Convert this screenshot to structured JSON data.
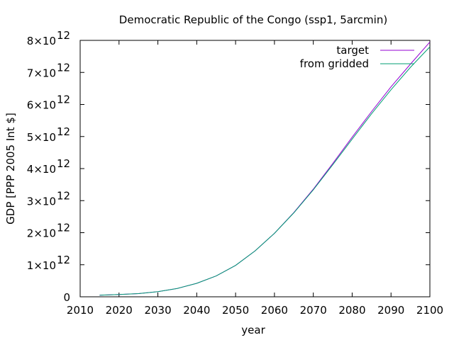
{
  "chart_data": {
    "type": "line",
    "title": "Democratic Republic of the Congo (ssp1, 5arcmin)",
    "xlabel": "year",
    "ylabel": "GDP [PPP 2005 Int $]",
    "xlim": [
      2010,
      2100
    ],
    "ylim": [
      0,
      8000000000000.0
    ],
    "x_ticks": [
      2010,
      2020,
      2030,
      2040,
      2050,
      2060,
      2070,
      2080,
      2090,
      2100
    ],
    "y_ticks": [
      {
        "value": 0,
        "mantissa": "0",
        "exp": ""
      },
      {
        "value": 1000000000000.0,
        "mantissa": "1×10",
        "exp": "12"
      },
      {
        "value": 2000000000000.0,
        "mantissa": "2×10",
        "exp": "12"
      },
      {
        "value": 3000000000000.0,
        "mantissa": "3×10",
        "exp": "12"
      },
      {
        "value": 4000000000000.0,
        "mantissa": "4×10",
        "exp": "12"
      },
      {
        "value": 5000000000000.0,
        "mantissa": "5×10",
        "exp": "12"
      },
      {
        "value": 6000000000000.0,
        "mantissa": "6×10",
        "exp": "12"
      },
      {
        "value": 7000000000000.0,
        "mantissa": "7×10",
        "exp": "12"
      },
      {
        "value": 8000000000000.0,
        "mantissa": "8×10",
        "exp": "12"
      }
    ],
    "grid": false,
    "legend_position": "top-right",
    "x": [
      2015,
      2020,
      2025,
      2030,
      2035,
      2040,
      2045,
      2050,
      2055,
      2060,
      2065,
      2070,
      2075,
      2080,
      2085,
      2090,
      2095,
      2100
    ],
    "series": [
      {
        "name": "target",
        "color": "#9400d3",
        "values": [
          50000000000.0,
          70000000000.0,
          100000000000.0,
          160000000000.0,
          260000000000.0,
          420000000000.0,
          650000000000.0,
          980000000000.0,
          1430000000000.0,
          1980000000000.0,
          2630000000000.0,
          3360000000000.0,
          4160000000000.0,
          4980000000000.0,
          5780000000000.0,
          6550000000000.0,
          7260000000000.0,
          7950000000000.0
        ]
      },
      {
        "name": "from gridded",
        "color": "#009e73",
        "values": [
          50000000000.0,
          70000000000.0,
          100000000000.0,
          160000000000.0,
          260000000000.0,
          420000000000.0,
          650000000000.0,
          980000000000.0,
          1430000000000.0,
          1980000000000.0,
          2620000000000.0,
          3340000000000.0,
          4120000000000.0,
          4920000000000.0,
          5710000000000.0,
          6460000000000.0,
          7160000000000.0,
          7800000000000.0
        ]
      }
    ]
  }
}
